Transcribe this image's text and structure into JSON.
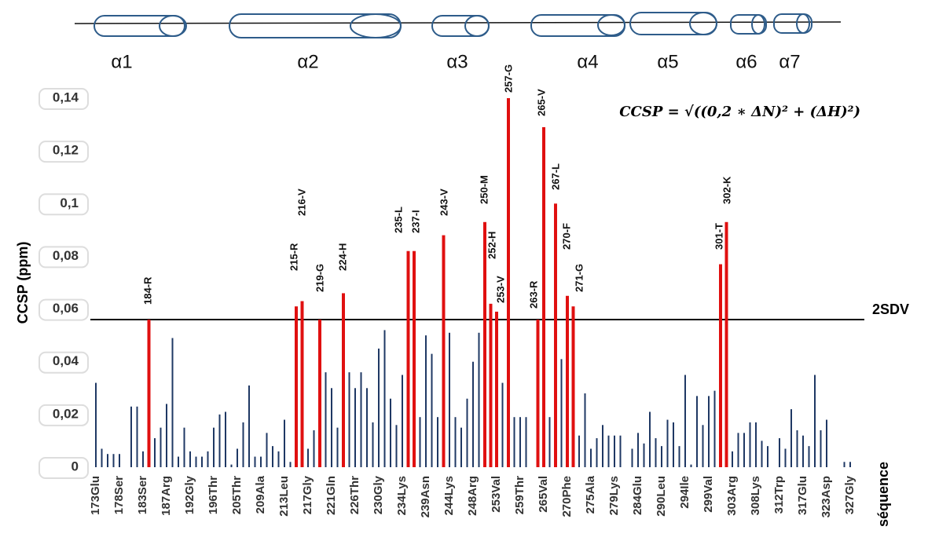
{
  "chart_data": {
    "type": "bar",
    "helices": [
      "α1",
      "α2",
      "α3",
      "α4",
      "α5",
      "α6",
      "α7"
    ],
    "formula": "CCSP = √((0,2 ∗ ΔN)² + (ΔH)²)",
    "y_label": "CCSP (ppm)",
    "x_label": "séquence",
    "threshold": {
      "label": "2SDV",
      "value": 0.056
    },
    "ylim": [
      0,
      0.14
    ],
    "yticks": [
      0,
      {
        "value": 0.02,
        "label": "0,02"
      },
      {
        "value": 0.04,
        "label": "0,04"
      },
      {
        "value": 0.06,
        "label": "0,06"
      },
      {
        "value": 0.08,
        "label": "0,08"
      },
      {
        "value": 0.1,
        "label": "0,1"
      },
      {
        "value": 0.12,
        "label": "0,12"
      },
      {
        "value": 0.14,
        "label": "0,14"
      }
    ],
    "color": "#1f3864",
    "highlight_color": "#e01010",
    "categories": [
      "173Glu",
      null,
      null,
      null,
      "178Ser",
      null,
      null,
      null,
      "183Ser",
      null,
      null,
      null,
      "187Arg",
      null,
      null,
      null,
      "192Gly",
      null,
      null,
      null,
      "196Thr",
      null,
      null,
      null,
      "205Thr",
      null,
      null,
      null,
      "209Ala",
      null,
      null,
      null,
      "213Leu",
      null,
      null,
      null,
      "217Gly",
      null,
      null,
      null,
      "221Gln",
      null,
      null,
      null,
      "226Thr",
      null,
      null,
      null,
      "230Gly",
      null,
      null,
      null,
      "234Lys",
      null,
      null,
      null,
      "239Asn",
      null,
      null,
      null,
      "244Lys",
      null,
      null,
      null,
      "248Arg",
      null,
      null,
      null,
      "253Val",
      null,
      null,
      null,
      "259Thr",
      null,
      null,
      null,
      "265Val",
      null,
      null,
      null,
      "270Phe",
      null,
      null,
      null,
      "275Ala",
      null,
      null,
      null,
      "279Lys",
      null,
      null,
      null,
      "284Glu",
      null,
      null,
      null,
      "290Leu",
      null,
      null,
      null,
      "294Ile",
      null,
      null,
      null,
      "299Val",
      null,
      null,
      null,
      "303Arg",
      null,
      null,
      null,
      "308Lys",
      null,
      null,
      null,
      "312Trp",
      null,
      null,
      null,
      "317Glu",
      null,
      null,
      null,
      "323Asp",
      null,
      null,
      null,
      "327Gly"
    ],
    "values": [
      0.032,
      0.007,
      0.005,
      0.005,
      0.005,
      null,
      0.023,
      0.023,
      0.006,
      0.056,
      0.011,
      0.015,
      0.024,
      0.049,
      0.004,
      0.015,
      0.006,
      0.004,
      0.004,
      0.006,
      0.015,
      0.02,
      0.021,
      0.001,
      0.007,
      0.017,
      0.031,
      0.004,
      0.004,
      0.013,
      0.008,
      0.006,
      0.018,
      0.002,
      0.061,
      0.063,
      0.007,
      0.014,
      0.056,
      0.036,
      0.03,
      0.015,
      0.066,
      0.036,
      0.03,
      0.036,
      0.03,
      0.017,
      0.045,
      0.052,
      0.026,
      0.016,
      0.035,
      0.082,
      0.082,
      0.019,
      0.05,
      0.043,
      0.019,
      0.088,
      0.051,
      0.019,
      0.015,
      0.026,
      0.04,
      0.051,
      0.093,
      0.062,
      0.059,
      0.032,
      0.14,
      0.019,
      0.019,
      0.019,
      null,
      0.056,
      0.129,
      0.019,
      0.1,
      0.041,
      0.065,
      0.061,
      0.012,
      0.028,
      0.007,
      0.011,
      0.016,
      0.012,
      0.012,
      0.012,
      null,
      0.007,
      0.013,
      0.009,
      0.021,
      0.011,
      0.008,
      0.018,
      0.017,
      0.008,
      0.035,
      0.001,
      0.027,
      0.016,
      0.027,
      0.029,
      0.077,
      0.093,
      0.006,
      0.013,
      0.013,
      0.017,
      0.017,
      0.01,
      0.008,
      null,
      0.011,
      0.007,
      0.022,
      0.014,
      0.012,
      0.008,
      0.035,
      0.014,
      0.018,
      null,
      null,
      0.002,
      0.002
    ],
    "bar_labels": [
      null,
      null,
      null,
      null,
      null,
      null,
      null,
      null,
      null,
      "184-R",
      null,
      null,
      null,
      null,
      null,
      null,
      null,
      null,
      null,
      null,
      null,
      null,
      null,
      null,
      null,
      null,
      null,
      null,
      null,
      null,
      null,
      null,
      null,
      null,
      "215-R",
      "216-V",
      null,
      null,
      "219-G",
      null,
      null,
      null,
      "224-H",
      null,
      null,
      null,
      null,
      null,
      null,
      null,
      null,
      null,
      null,
      "235-L",
      "237-I",
      null,
      null,
      null,
      null,
      "243-V",
      null,
      null,
      null,
      null,
      null,
      null,
      "250-M",
      "252-H",
      "253-V",
      null,
      "257-G",
      null,
      null,
      null,
      null,
      "263-R",
      "265-V",
      null,
      "267-L",
      null,
      "270-F",
      "271-G",
      null,
      null,
      null,
      null,
      null,
      null,
      null,
      null,
      null,
      null,
      null,
      null,
      null,
      null,
      null,
      null,
      null,
      null,
      null,
      null,
      null,
      null,
      null,
      null,
      "301-T",
      "302-K",
      null,
      null,
      null,
      null,
      null,
      null,
      null,
      null,
      null,
      null,
      null,
      null,
      null,
      null,
      null,
      null,
      null,
      null,
      null,
      null,
      null
    ]
  }
}
